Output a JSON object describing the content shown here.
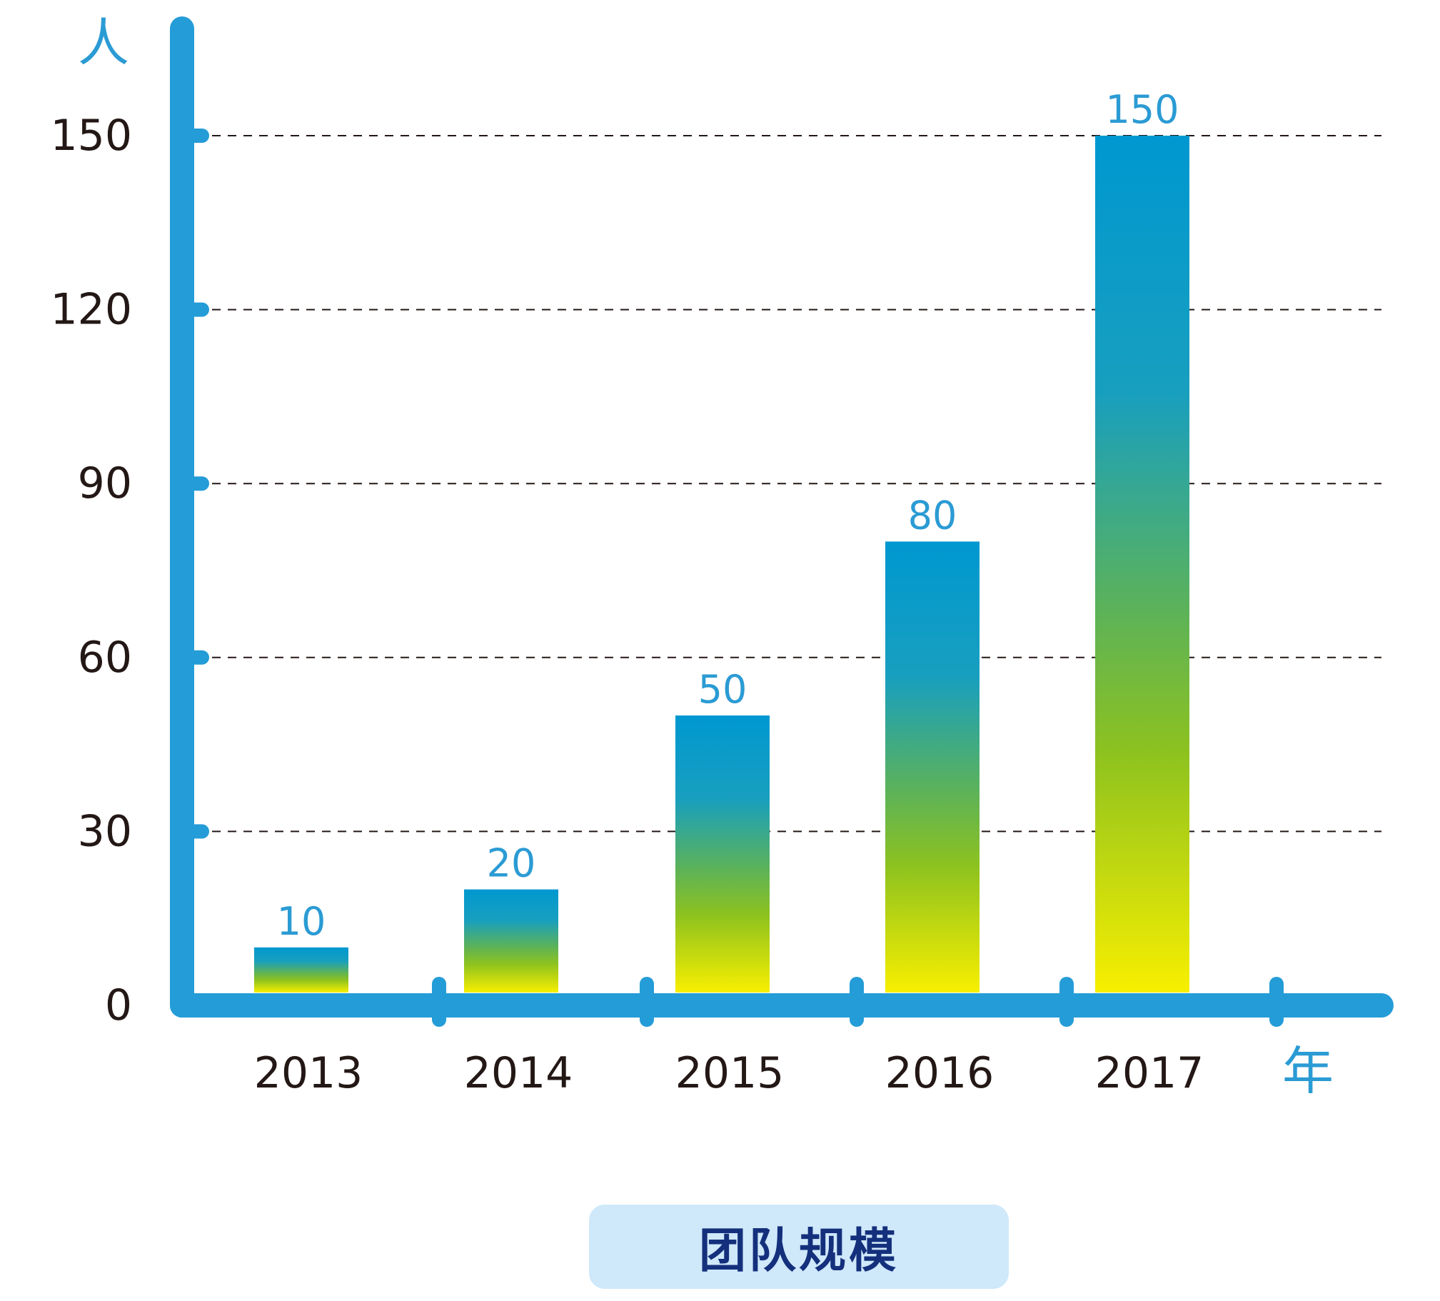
{
  "chart_data": {
    "type": "bar",
    "title": "团队规模",
    "xlabel": "年",
    "ylabel": "人",
    "categories": [
      "2013",
      "2014",
      "2015",
      "2016",
      "2017"
    ],
    "values": [
      10,
      20,
      50,
      80,
      150
    ],
    "ylim": [
      0,
      150
    ],
    "yticks": [
      "0",
      "30",
      "60",
      "90",
      "120",
      "150"
    ],
    "grid": true,
    "colors": {
      "axis": "#249cd7",
      "bar_top": "#0098d0",
      "bar_mid": "#8dc21f",
      "bar_bottom": "#f8ef00",
      "value_label": "#2b9bd4",
      "tick_label": "#231815",
      "title_bg": "#cfe8fa",
      "title_text": "#14307c"
    }
  }
}
